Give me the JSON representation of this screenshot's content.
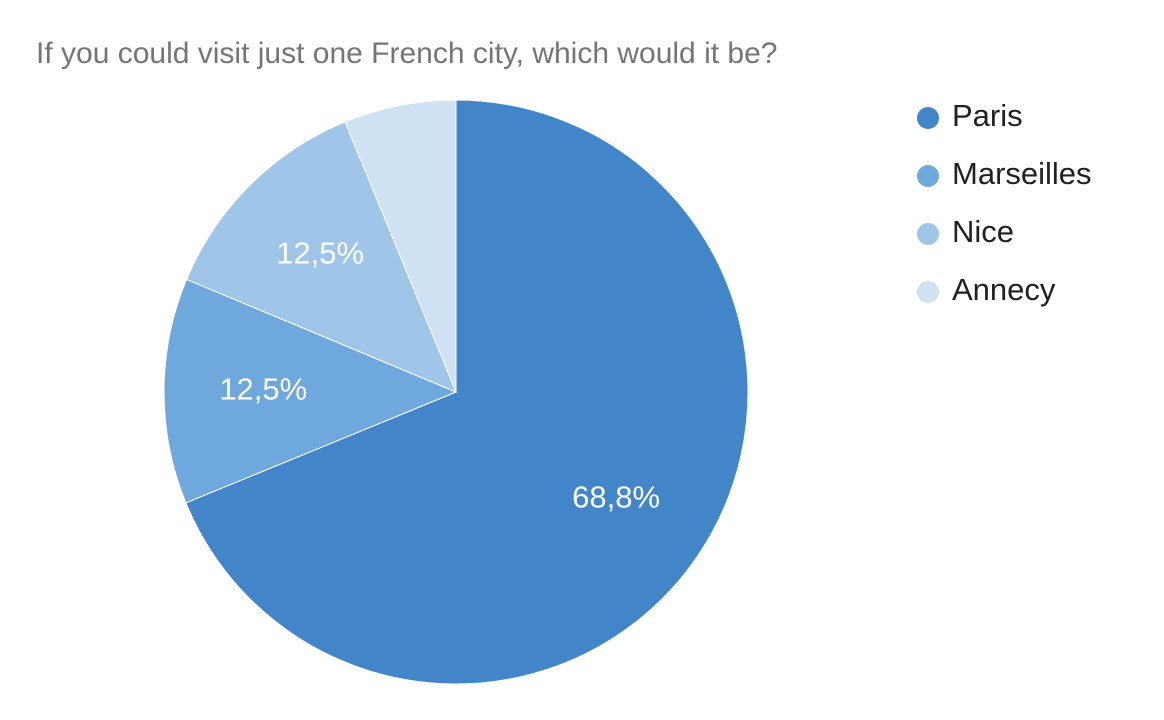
{
  "chart_data": {
    "type": "pie",
    "title": "If you could visit just one French city, which would it be?",
    "categories": [
      "Paris",
      "Marseilles",
      "Nice",
      "Annecy"
    ],
    "values": [
      68.8,
      12.5,
      12.5,
      6.2
    ],
    "value_labels": [
      "68,8%",
      "12,5%",
      "12,5%",
      null
    ],
    "colors": [
      "#4285c8",
      "#6fa8dc",
      "#9fc5e8",
      "#cfe2f3"
    ],
    "legend": "right"
  }
}
